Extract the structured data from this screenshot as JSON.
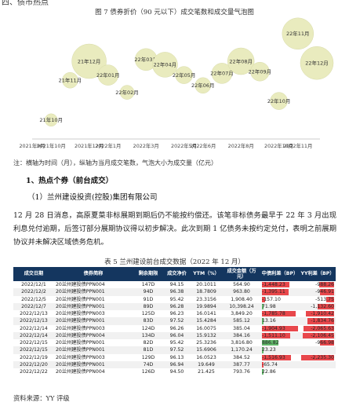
{
  "section_top": "四、债市热点",
  "figure7": {
    "title": "图 7 债券折价（90 元以下）成交笔数和成交量气泡图",
    "note": "注：横轴为时间（月），纵轴为当月成交笔数，气泡大小为成交量（亿元）",
    "chart_data": {
      "type": "bubble",
      "x_ticks": [
        "2021年9月",
        "2021年10月",
        "2021年12月",
        "2022年1月",
        "2022年3月",
        "2022年5月",
        "2022年6月",
        "2022年8月",
        "2022年10月",
        "2022年11月"
      ],
      "points": [
        {
          "label": "21年10月",
          "x": "2021-10",
          "y": 11,
          "size": 8
        },
        {
          "label": "21年11月",
          "x": "2021-11",
          "y": 34,
          "size": 10
        },
        {
          "label": "21年12月",
          "x": "2021-12",
          "y": 45,
          "size": 22
        },
        {
          "label": "22年01月",
          "x": "2022-01",
          "y": 37,
          "size": 13
        },
        {
          "label": "22年02月",
          "x": "2022-02",
          "y": 27,
          "size": 9
        },
        {
          "label": "22年03月",
          "x": "2022-03",
          "y": 46,
          "size": 14
        },
        {
          "label": "22年04月",
          "x": "2022-04",
          "y": 43,
          "size": 16
        },
        {
          "label": "22年05月",
          "x": "2022-05",
          "y": 37,
          "size": 11
        },
        {
          "label": "22年06月",
          "x": "2022-06",
          "y": 31,
          "size": 10
        },
        {
          "label": "22年07月",
          "x": "2022-07",
          "y": 38,
          "size": 13
        },
        {
          "label": "22年08月",
          "x": "2022-08",
          "y": 45,
          "size": 17
        },
        {
          "label": "22年09月",
          "x": "2022-09",
          "y": 39,
          "size": 12
        },
        {
          "label": "22年10月",
          "x": "2022-10",
          "y": 22,
          "size": 11
        },
        {
          "label": "22年11月",
          "x": "2022-11",
          "y": 61,
          "size": 20
        },
        {
          "label": "22年12月",
          "x": "2022-12",
          "y": 44,
          "size": 21
        }
      ]
    }
  },
  "heading1": "1、热点个券（前台成交）",
  "subhead": "（1）兰州建设投资(控股)集团有限公司",
  "paragraph": "12 月 28 日消息，高原夏菜非标展期到期后仍不能按约偿还。该笔非标债务最早于 22 年 3 月出现利息兑付逾期，后签订部分展期协议得以初步解决。此次到期 1 亿债务未按约定兑付，表明之前展期协议并未解决区域债务危机。",
  "table5": {
    "title": "表 5 兰州建设前台成交数据（2022 年 12 月）",
    "headers": [
      "成交日期",
      "债券简称",
      "剩余期限",
      "成交净价",
      "YTM（%）",
      "成交金额（万元）",
      "中债利差（BP）",
      "YY利差（BP）"
    ],
    "rows": [
      [
        "2022/12/1",
        "20兰州建投债PPN004",
        "147D",
        "94.15",
        "20.1011",
        "564.90",
        "-1,448.23",
        "-988.26"
      ],
      [
        "2022/12/2",
        "20兰州建投债PPN001",
        "94D",
        "96.38",
        "18.7809",
        "963.80",
        "-1,395.11",
        "-946.91"
      ],
      [
        "2022/12/5",
        "20兰州建投债PPN001",
        "91D",
        "95.42",
        "23.3156",
        "1,908.40",
        "-157.10",
        "-513.75"
      ],
      [
        "2022/12/7",
        "20兰州建投债PPN001",
        "89D",
        "96.28",
        "19.9894",
        "10,398.24",
        "71.98",
        "-1,132.60"
      ],
      [
        "2022/12/13",
        "20兰州建投债PPN003",
        "125D",
        "96.23",
        "16.0141",
        "3,849.20",
        "-1,785.78",
        "-1,910.42"
      ],
      [
        "2022/12/13",
        "20兰州建投债PPN001",
        "83D",
        "97.52",
        "15.4284",
        "585.12",
        "13.16",
        "-1,834.76"
      ],
      [
        "2022/12/14",
        "20兰州建投债PPN003",
        "124D",
        "96.26",
        "16.0075",
        "385.04",
        "-1,904.93",
        "-2,065.63"
      ],
      [
        "2022/12/14",
        "20兰州建投债PPN004",
        "134D",
        "96.04",
        "15.9132",
        "384.16",
        "-1,511.10",
        "-2,106.45"
      ],
      [
        "2022/12/15",
        "20兰州建投债PPN001",
        "82D",
        "95.42",
        "25.3236",
        "3,816.80",
        "886.82",
        "-966.98"
      ],
      [
        "2022/12/15",
        "20兰州建投债PPN001",
        "81D",
        "97.52",
        "15.6906",
        "1,170.24",
        "23.23",
        ""
      ],
      [
        "2022/12/19",
        "20兰州建投债PPN003",
        "129D",
        "96.13",
        "16.0523",
        "384.52",
        "-1,516.93",
        "-2,235.30"
      ],
      [
        "2022/12/20",
        "20兰州建投债PPN001",
        "74D",
        "96.94",
        "19.649",
        "387.77",
        "-65.74",
        ""
      ],
      [
        "2022/12/22",
        "20兰州建投债PPN004",
        "126D",
        "94.50",
        "21.425",
        "793.76",
        "22.86",
        ""
      ]
    ],
    "bar_scales": {
      "zz_max_abs": 1904.93,
      "yy_max_abs": 2235.3
    },
    "colors": {
      "header_bg": "#14365f",
      "negative_bar": "#e8474b",
      "positive_bar": "#62b86a"
    }
  },
  "source": "资料来源：YY 评级"
}
